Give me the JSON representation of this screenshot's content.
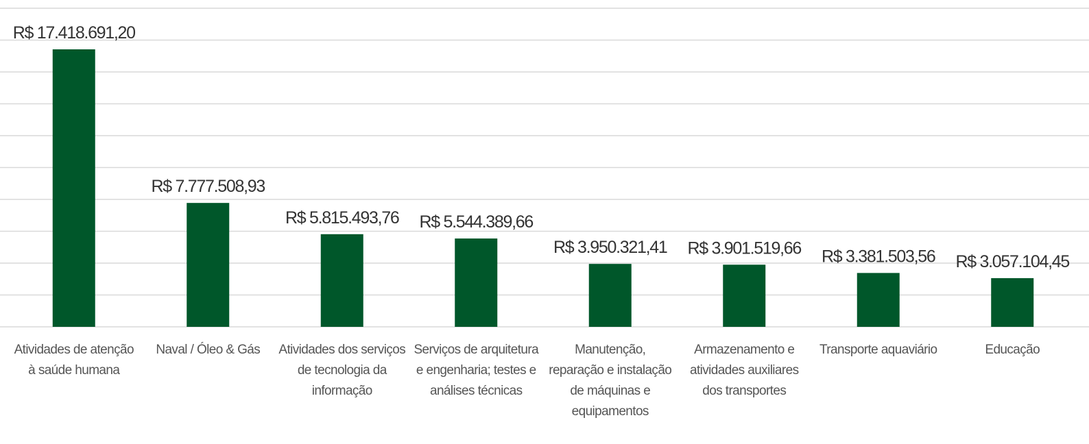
{
  "chart_data": {
    "type": "bar",
    "categories": [
      "Atividades de atenção à saúde humana",
      "Naval / Óleo & Gás",
      "Atividades dos serviços de tecnologia da informação",
      "Serviços de arquitetura e engenharia; testes e análises técnicas",
      "Manutenção, reparação e instalação de máquinas e equipamentos",
      "Armazenamento e atividades auxiliares dos transportes",
      "Transporte aquaviário",
      "Educação"
    ],
    "values": [
      17418691.2,
      7777508.93,
      5815493.76,
      5544389.66,
      3950321.41,
      3901519.66,
      3381503.56,
      3057104.45
    ],
    "value_labels": [
      "R$ 17.418.691,20",
      "R$ 7.777.508,93",
      "R$ 5.815.493,76",
      "R$ 5.544.389,66",
      "R$ 3.950.321,41",
      "R$ 3.901.519,66",
      "R$ 3.381.503,56",
      "R$ 3.057.104,45"
    ],
    "color": "#00572a",
    "ylim": [
      0,
      20000000
    ],
    "yticks": [
      0,
      2000000,
      4000000,
      6000000,
      8000000,
      10000000,
      12000000,
      14000000,
      16000000,
      18000000,
      20000000
    ],
    "grid": true
  }
}
